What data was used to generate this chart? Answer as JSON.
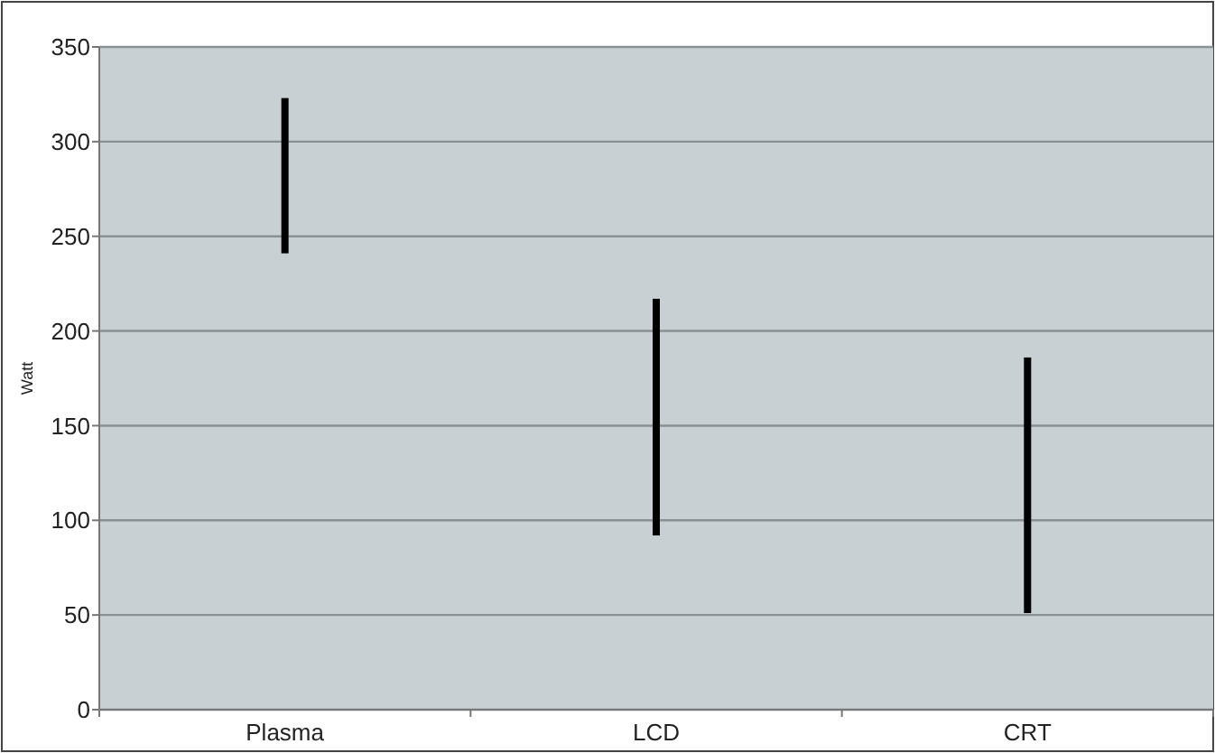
{
  "chart_data": {
    "type": "bar",
    "ylabel": "Watt",
    "categories": [
      "Plasma",
      "LCD",
      "CRT"
    ],
    "base": [
      241,
      92,
      51
    ],
    "values": [
      82,
      125,
      135
    ],
    "color": "#000000",
    "ylim": [
      0,
      350
    ],
    "yticks": [
      0,
      50,
      100,
      150,
      200,
      250,
      300,
      350
    ],
    "grid": "y"
  }
}
